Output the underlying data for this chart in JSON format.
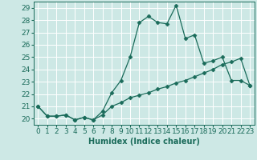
{
  "xlabel": "Humidex (Indice chaleur)",
  "ylabel": "",
  "background_color": "#cde8e5",
  "grid_color": "#ffffff",
  "line_color": "#1a6b5a",
  "xlim": [
    -0.5,
    23.5
  ],
  "ylim": [
    19.5,
    29.5
  ],
  "x_ticks": [
    0,
    1,
    2,
    3,
    4,
    5,
    6,
    7,
    8,
    9,
    10,
    11,
    12,
    13,
    14,
    15,
    16,
    17,
    18,
    19,
    20,
    21,
    22,
    23
  ],
  "y_ticks": [
    20,
    21,
    22,
    23,
    24,
    25,
    26,
    27,
    28,
    29
  ],
  "series1_x": [
    0,
    1,
    2,
    3,
    4,
    5,
    6,
    7,
    8,
    9,
    10,
    11,
    12,
    13,
    14,
    15,
    16,
    17,
    18,
    19,
    20,
    21,
    22,
    23
  ],
  "series1_y": [
    21.0,
    20.2,
    20.2,
    20.3,
    19.9,
    20.1,
    19.9,
    20.6,
    22.1,
    23.1,
    25.0,
    27.8,
    28.3,
    27.8,
    27.7,
    29.2,
    26.5,
    26.8,
    24.5,
    24.7,
    25.0,
    23.1,
    23.1,
    22.7
  ],
  "series2_x": [
    0,
    1,
    2,
    3,
    4,
    5,
    6,
    7,
    8,
    9,
    10,
    11,
    12,
    13,
    14,
    15,
    16,
    17,
    18,
    19,
    20,
    21,
    22,
    23
  ],
  "series2_y": [
    21.0,
    20.2,
    20.2,
    20.3,
    19.9,
    20.1,
    19.9,
    20.3,
    21.0,
    21.3,
    21.7,
    21.9,
    22.1,
    22.4,
    22.6,
    22.9,
    23.1,
    23.4,
    23.7,
    24.0,
    24.4,
    24.6,
    24.9,
    22.7
  ],
  "marker": "D",
  "marker_size": 2.5,
  "linewidth": 0.9,
  "font_size_label": 7,
  "font_size_tick": 6.5
}
